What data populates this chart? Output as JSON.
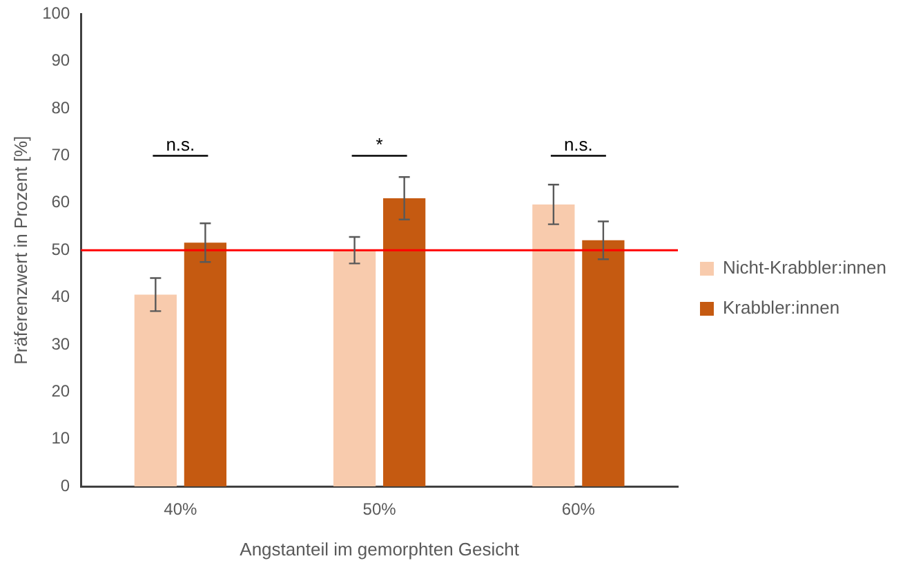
{
  "chart_data": {
    "type": "bar",
    "xlabel": "Angstanteil im gemorphten Gesicht",
    "ylabel": "Präferenzwert in Prozent [%]",
    "categories": [
      "40%",
      "50%",
      "60%"
    ],
    "series": [
      {
        "name": "Nicht-Krabbler:innen",
        "color": "#f8cbad",
        "values": [
          40.6,
          50.0,
          59.7
        ],
        "errors": [
          3.5,
          2.8,
          4.2
        ]
      },
      {
        "name": "Krabbler:innen",
        "color": "#c55a11",
        "values": [
          51.6,
          61.0,
          52.1
        ],
        "errors": [
          4.1,
          4.5,
          4.0
        ]
      }
    ],
    "ylim": [
      0,
      100
    ],
    "yticks": [
      0,
      10,
      20,
      30,
      40,
      50,
      60,
      70,
      80,
      90,
      100
    ],
    "grid": false,
    "legend": "right",
    "ref_lines": [
      {
        "axis": "y",
        "value": 50,
        "color": "#ff0000"
      }
    ],
    "annotations": [
      "n.s.",
      "*",
      "n.s."
    ]
  }
}
